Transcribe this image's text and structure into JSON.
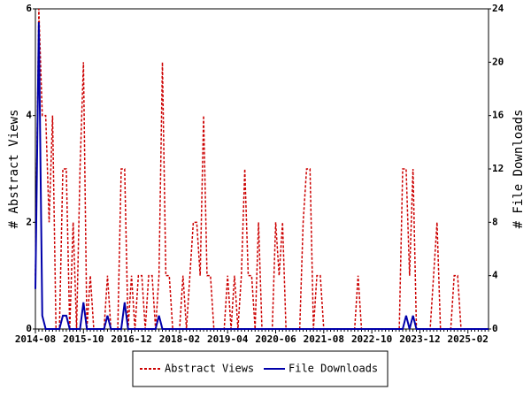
{
  "chart_data": {
    "type": "line",
    "categories": [
      "2014-08",
      null,
      null,
      null,
      null,
      null,
      null,
      null,
      null,
      null,
      null,
      null,
      null,
      null,
      "2015-10",
      null,
      null,
      null,
      null,
      null,
      null,
      null,
      null,
      null,
      null,
      null,
      null,
      null,
      "2016-12",
      null,
      null,
      null,
      null,
      null,
      null,
      null,
      null,
      null,
      null,
      null,
      null,
      null,
      "2018-02",
      null,
      null,
      null,
      null,
      null,
      null,
      null,
      null,
      null,
      null,
      null,
      null,
      null,
      "2019-04",
      null,
      null,
      null,
      null,
      null,
      null,
      null,
      null,
      null,
      null,
      null,
      null,
      null,
      "2020-06",
      null,
      null,
      null,
      null,
      null,
      null,
      null,
      null,
      null,
      null,
      null,
      null,
      null,
      "2021-08",
      null,
      null,
      null,
      null,
      null,
      null,
      null,
      null,
      null,
      null,
      null,
      null,
      null,
      "2022-10",
      null,
      null,
      null,
      null,
      null,
      null,
      null,
      null,
      null,
      null,
      null,
      null,
      null,
      "2023-12",
      null,
      null,
      null,
      null,
      null,
      null,
      null,
      null,
      null,
      null,
      null,
      null,
      null,
      "2025-02",
      null,
      null,
      null,
      null,
      null,
      null
    ],
    "series": [
      {
        "name": "Abstract Views",
        "color": "#cc0000",
        "axis": "y",
        "values": [
          1,
          6,
          4,
          4,
          2,
          4,
          0,
          0,
          3,
          3,
          0,
          2,
          0,
          3,
          5,
          0,
          1,
          0,
          0,
          0,
          0,
          1,
          0,
          0,
          0,
          3,
          3,
          0,
          1,
          0,
          1,
          1,
          0,
          1,
          1,
          0,
          1,
          5,
          1,
          1,
          0,
          0,
          0,
          1,
          0,
          1,
          2,
          2,
          1,
          4,
          1,
          1,
          0,
          0,
          0,
          0,
          1,
          0,
          1,
          0,
          1,
          3,
          1,
          1,
          0,
          2,
          0,
          0,
          0,
          0,
          2,
          1,
          2,
          0,
          0,
          0,
          0,
          0,
          2,
          3,
          3,
          0,
          1,
          1,
          0,
          0,
          0,
          0,
          0,
          0,
          0,
          0,
          0,
          0,
          1,
          0,
          0,
          0,
          0,
          0,
          0,
          0,
          0,
          0,
          0,
          0,
          0,
          3,
          3,
          1,
          3,
          0,
          0,
          0,
          0,
          0,
          1,
          2,
          0,
          0,
          0,
          0,
          1,
          1,
          0,
          0,
          0,
          0,
          0,
          0,
          0,
          0,
          0
        ]
      },
      {
        "name": "File Downloads",
        "color": "#0000aa",
        "axis": "y2",
        "values": [
          3,
          23,
          1,
          0,
          0,
          0,
          0,
          0,
          1,
          1,
          0,
          0,
          0,
          0,
          2,
          0,
          0,
          0,
          0,
          0,
          0,
          1,
          0,
          0,
          0,
          0,
          2,
          0,
          0,
          0,
          0,
          0,
          0,
          0,
          0,
          0,
          1,
          0,
          0,
          0,
          0,
          0,
          0,
          0,
          0,
          0,
          0,
          0,
          0,
          0,
          0,
          0,
          0,
          0,
          0,
          0,
          0,
          0,
          0,
          0,
          0,
          0,
          0,
          0,
          0,
          0,
          0,
          0,
          0,
          0,
          0,
          0,
          0,
          0,
          0,
          0,
          0,
          0,
          0,
          0,
          0,
          0,
          0,
          0,
          0,
          0,
          0,
          0,
          0,
          0,
          0,
          0,
          0,
          0,
          0,
          0,
          0,
          0,
          0,
          0,
          0,
          0,
          0,
          0,
          0,
          0,
          0,
          0,
          1,
          0,
          1,
          0,
          0,
          0,
          0,
          0,
          0,
          0,
          0,
          0,
          0,
          0,
          0,
          0,
          0,
          0,
          0,
          0,
          0,
          0,
          0,
          0,
          0
        ]
      }
    ],
    "ylabel": "# Abstract Views",
    "y2label": "# File Downloads",
    "ylim": [
      0,
      6
    ],
    "yticks": [
      0,
      2,
      4,
      6
    ],
    "y2lim": [
      0,
      24
    ],
    "y2ticks": [
      0,
      4,
      8,
      12,
      16,
      20,
      24
    ],
    "legend": "bottom"
  }
}
